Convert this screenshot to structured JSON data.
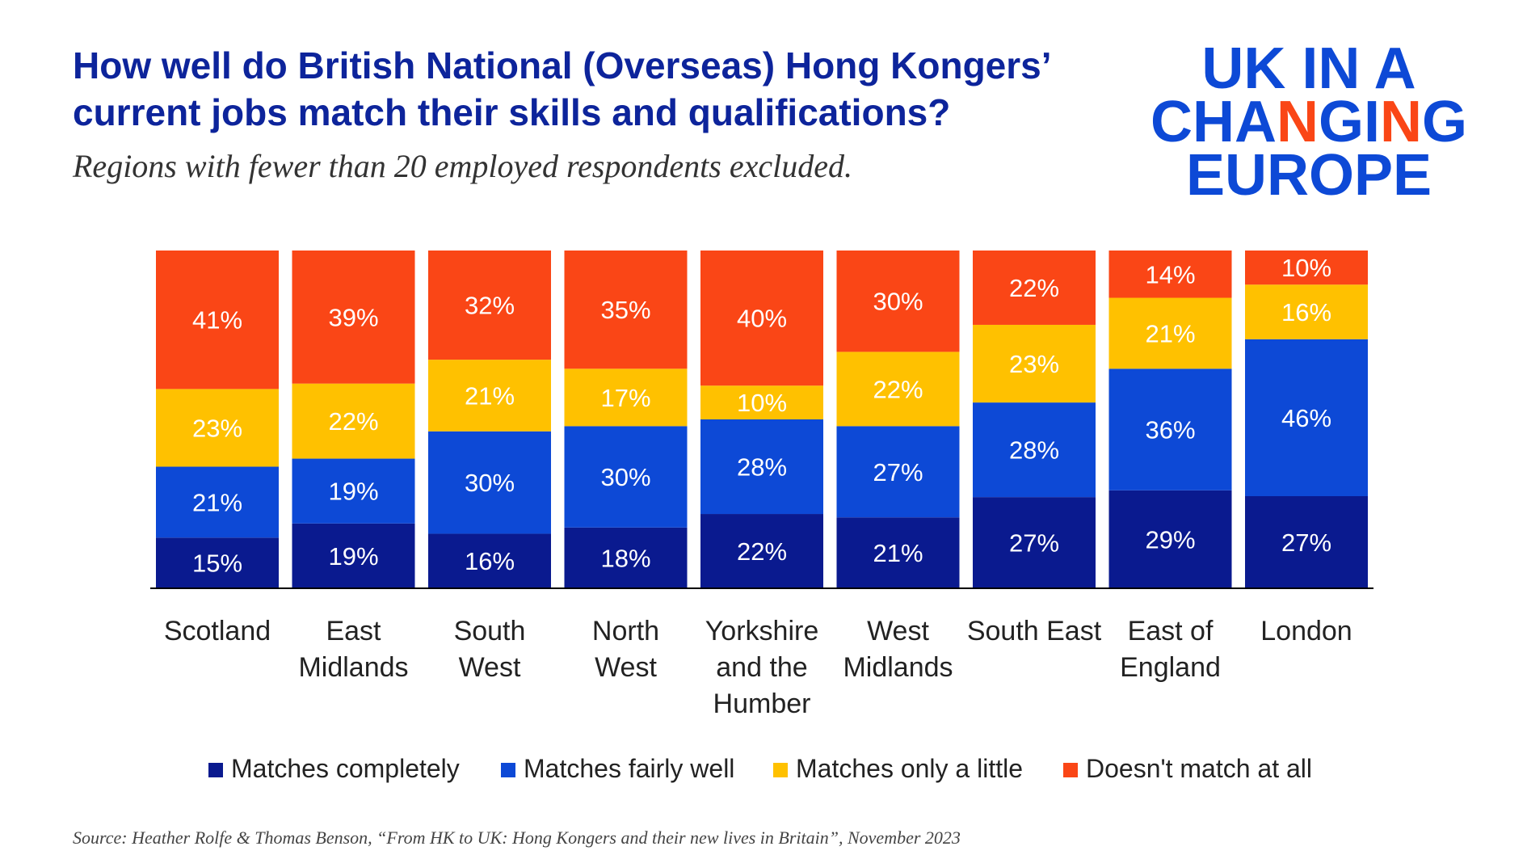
{
  "title": "How well do British National (Overseas) Hong Kongers’ current jobs match their skills and qualifications?",
  "subtitle": "Regions with fewer than 20 employed respondents excluded.",
  "logo": {
    "line1": "UK IN A",
    "line2_a": "CHA",
    "line2_b": "N",
    "line2_c": "GI",
    "line2_d": "N",
    "line2_e": "G",
    "line3": "EUROPE"
  },
  "source": "Source: Heather Rolfe & Thomas Benson, “From HK to UK: Hong Kongers and their new lives in Britain”, November 2023",
  "colors": {
    "matches_completely": "#0a1a8f",
    "matches_fairly_well": "#0d49d6",
    "matches_only_a_little": "#ffc100",
    "doesnt_match": "#fa4616",
    "title": "#0d249b"
  },
  "chart_data": {
    "type": "bar",
    "stacked": true,
    "normalized": true,
    "categories": [
      [
        "Scotland"
      ],
      [
        "East",
        "Midlands"
      ],
      [
        "South",
        "West"
      ],
      [
        "North",
        "West"
      ],
      [
        "Yorkshire",
        "and the",
        "Humber"
      ],
      [
        "West",
        "Midlands"
      ],
      [
        "South East"
      ],
      [
        "East of",
        "England"
      ],
      [
        "London"
      ]
    ],
    "series": [
      {
        "name": "Matches completely",
        "color": "#0a1a8f",
        "values": [
          15,
          19,
          16,
          18,
          22,
          21,
          27,
          29,
          27
        ]
      },
      {
        "name": "Matches fairly well",
        "color": "#0d49d6",
        "values": [
          21,
          19,
          30,
          30,
          28,
          27,
          28,
          36,
          46
        ]
      },
      {
        "name": "Matches only a little",
        "color": "#ffc100",
        "values": [
          23,
          22,
          21,
          17,
          10,
          22,
          23,
          21,
          16
        ]
      },
      {
        "name": "Doesn't match at all",
        "color": "#fa4616",
        "values": [
          41,
          39,
          32,
          35,
          40,
          30,
          22,
          14,
          10
        ]
      }
    ],
    "value_suffix": "%",
    "legend_position": "bottom",
    "grid": false
  }
}
